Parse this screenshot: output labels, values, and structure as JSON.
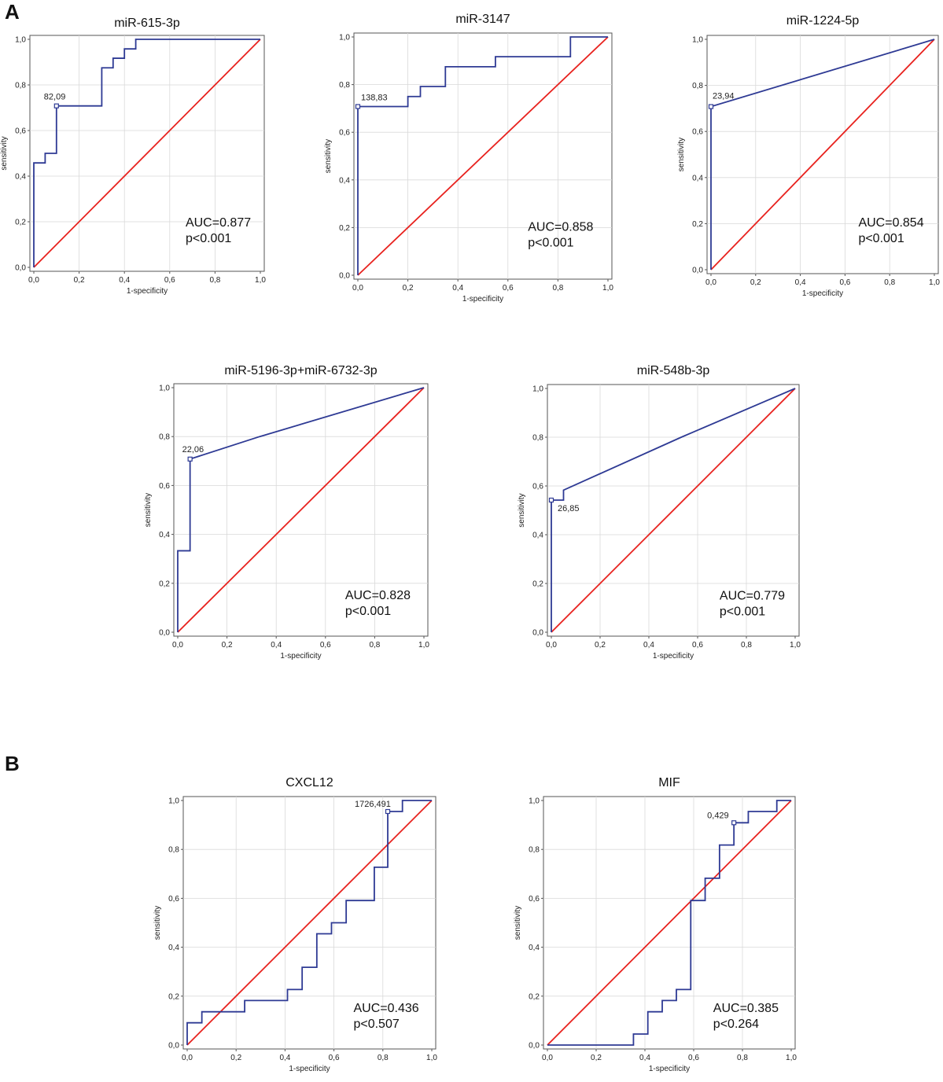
{
  "panels": {
    "a": "A",
    "b": "B"
  },
  "colors": {
    "roc": "#2e3a94",
    "reference": "#e8221e",
    "grid": "#d9d9d9"
  },
  "chart_data": [
    {
      "type": "line",
      "panel": "A",
      "title": "miR-615-3p",
      "xlabel": "1-specificity",
      "ylabel": "sensitivity",
      "xlim": [
        0,
        1
      ],
      "ylim": [
        0,
        1
      ],
      "xticks": [
        "0,0",
        "0,2",
        "0,4",
        "0,6",
        "0,8",
        "1,0"
      ],
      "yticks": [
        "0,0",
        "0,2",
        "0,4",
        "0,6",
        "0,8",
        "1,0"
      ],
      "roc": {
        "x": [
          0,
          0,
          0.05,
          0.05,
          0.1,
          0.1,
          0.3,
          0.3,
          0.35,
          0.35,
          0.4,
          0.4,
          0.45,
          0.45,
          1.0
        ],
        "y": [
          0,
          0.458,
          0.458,
          0.5,
          0.5,
          0.708,
          0.708,
          0.875,
          0.875,
          0.917,
          0.917,
          0.958,
          0.958,
          1.0,
          1.0
        ]
      },
      "reference": {
        "x": [
          0,
          1
        ],
        "y": [
          0,
          1
        ]
      },
      "cutoff": {
        "x": 0.1,
        "y": 0.708,
        "label": "82,09"
      },
      "auc": "AUC=0.877",
      "p": "p<0.001"
    },
    {
      "type": "line",
      "panel": "A",
      "title": "miR-3147",
      "xlabel": "1-specificity",
      "ylabel": "sensitivity",
      "xlim": [
        0,
        1
      ],
      "ylim": [
        0,
        1
      ],
      "xticks": [
        "0,0",
        "0,2",
        "0,4",
        "0,6",
        "0,8",
        "1,0"
      ],
      "yticks": [
        "0,0",
        "0,2",
        "0,4",
        "0,6",
        "0,8",
        "1,0"
      ],
      "roc": {
        "x": [
          0,
          0,
          0.2,
          0.2,
          0.25,
          0.25,
          0.35,
          0.35,
          0.55,
          0.55,
          0.85,
          0.85,
          1.0
        ],
        "y": [
          0,
          0.708,
          0.708,
          0.75,
          0.75,
          0.792,
          0.792,
          0.875,
          0.875,
          0.917,
          0.917,
          1.0,
          1.0
        ]
      },
      "reference": {
        "x": [
          0,
          1
        ],
        "y": [
          0,
          1
        ]
      },
      "cutoff": {
        "x": 0,
        "y": 0.708,
        "label": "138,83"
      },
      "auc": "AUC=0.858",
      "p": "p<0.001"
    },
    {
      "type": "line",
      "panel": "A",
      "title": "miR-1224-5p",
      "xlabel": "1-specificity",
      "ylabel": "sensitivity",
      "xlim": [
        0,
        1
      ],
      "ylim": [
        0,
        1
      ],
      "xticks": [
        "0,0",
        "0,2",
        "0,4",
        "0,6",
        "0,8",
        "1,0"
      ],
      "yticks": [
        "0,0",
        "0,2",
        "0,4",
        "0,6",
        "0,8",
        "1,0"
      ],
      "roc": {
        "x": [
          0,
          0,
          1.0
        ],
        "y": [
          0,
          0.708,
          1.0
        ]
      },
      "reference": {
        "x": [
          0,
          1
        ],
        "y": [
          0,
          1
        ]
      },
      "cutoff": {
        "x": 0,
        "y": 0.708,
        "label": "23,94"
      },
      "auc": "AUC=0.854",
      "p": "p<0.001"
    },
    {
      "type": "line",
      "panel": "A",
      "title": "miR-5196-3p+miR-6732-3p",
      "xlabel": "1-specificity",
      "ylabel": "sensitivity",
      "xlim": [
        0,
        1
      ],
      "ylim": [
        0,
        1
      ],
      "xticks": [
        "0,0",
        "0,2",
        "0,4",
        "0,6",
        "0,8",
        "1,0"
      ],
      "yticks": [
        "0,0",
        "0,2",
        "0,4",
        "0,6",
        "0,8",
        "1,0"
      ],
      "roc": {
        "x": [
          0,
          0,
          0.05,
          0.05,
          0.333,
          1.0
        ],
        "y": [
          0,
          0.333,
          0.333,
          0.708,
          0.8,
          1.0
        ]
      },
      "reference": {
        "x": [
          0,
          1
        ],
        "y": [
          0,
          1
        ]
      },
      "cutoff": {
        "x": 0.05,
        "y": 0.708,
        "label": "22,06"
      },
      "auc": "AUC=0.828",
      "p": "p<0.001"
    },
    {
      "type": "line",
      "panel": "A",
      "title": "miR-548b-3p",
      "xlabel": "1-specificity",
      "ylabel": "sensitivity",
      "xlim": [
        0,
        1
      ],
      "ylim": [
        0,
        1
      ],
      "xticks": [
        "0,0",
        "0,2",
        "0,4",
        "0,6",
        "0,8",
        "1,0"
      ],
      "yticks": [
        "0,0",
        "0,2",
        "0,4",
        "0,6",
        "0,8",
        "1,0"
      ],
      "roc": {
        "x": [
          0,
          0,
          0.05,
          0.05,
          0.533,
          1.0
        ],
        "y": [
          0,
          0.542,
          0.542,
          0.583,
          0.8,
          1.0
        ]
      },
      "reference": {
        "x": [
          0,
          1
        ],
        "y": [
          0,
          1
        ]
      },
      "cutoff": {
        "x": 0,
        "y": 0.542,
        "label": "26,85"
      },
      "auc": "AUC=0.779",
      "p": "p<0.001"
    },
    {
      "type": "line",
      "panel": "B",
      "title": "CXCL12",
      "xlabel": "1-specificity",
      "ylabel": "sensitivity",
      "xlim": [
        0,
        1
      ],
      "ylim": [
        0,
        1
      ],
      "xticks": [
        "0,0",
        "0,2",
        "0,4",
        "0,6",
        "0,8",
        "1,0"
      ],
      "yticks": [
        "0,0",
        "0,2",
        "0,4",
        "0,6",
        "0,8",
        "1,0"
      ],
      "roc": {
        "x": [
          0,
          0,
          0.06,
          0.06,
          0.235,
          0.235,
          0.41,
          0.41,
          0.47,
          0.47,
          0.53,
          0.53,
          0.59,
          0.59,
          0.65,
          0.65,
          0.765,
          0.765,
          0.82,
          0.82,
          0.88,
          0.88,
          1.0
        ],
        "y": [
          0,
          0.091,
          0.091,
          0.136,
          0.136,
          0.182,
          0.182,
          0.227,
          0.227,
          0.318,
          0.318,
          0.455,
          0.455,
          0.5,
          0.5,
          0.591,
          0.591,
          0.727,
          0.727,
          0.955,
          0.955,
          1.0,
          1.0
        ]
      },
      "reference": {
        "x": [
          0,
          1
        ],
        "y": [
          0,
          1
        ]
      },
      "cutoff": {
        "x": 0.82,
        "y": 0.955,
        "label": "1726,491"
      },
      "auc": "AUC=0.436",
      "p": "p<0.507"
    },
    {
      "type": "line",
      "panel": "B",
      "title": "MIF",
      "xlabel": "1-specificity",
      "ylabel": "sensitivity",
      "xlim": [
        0,
        1
      ],
      "ylim": [
        0,
        1
      ],
      "xticks": [
        "0,0",
        "0,2",
        "0,4",
        "0,6",
        "0,8",
        "1,0"
      ],
      "yticks": [
        "0,0",
        "0,2",
        "0,4",
        "0,6",
        "0,8",
        "1,0"
      ],
      "roc": {
        "x": [
          0,
          0.353,
          0.353,
          0.412,
          0.412,
          0.471,
          0.471,
          0.529,
          0.529,
          0.588,
          0.588,
          0.647,
          0.647,
          0.706,
          0.706,
          0.765,
          0.765,
          0.824,
          0.824,
          0.941,
          0.941,
          1.0
        ],
        "y": [
          0,
          0,
          0.045,
          0.045,
          0.136,
          0.136,
          0.182,
          0.182,
          0.227,
          0.227,
          0.591,
          0.591,
          0.682,
          0.682,
          0.818,
          0.818,
          0.909,
          0.909,
          0.955,
          0.955,
          1.0,
          1.0
        ]
      },
      "reference": {
        "x": [
          0,
          1
        ],
        "y": [
          0,
          1
        ]
      },
      "cutoff": {
        "x": 0.765,
        "y": 0.909,
        "label": "0,429"
      },
      "auc": "AUC=0.385",
      "p": "p<0.264"
    }
  ]
}
